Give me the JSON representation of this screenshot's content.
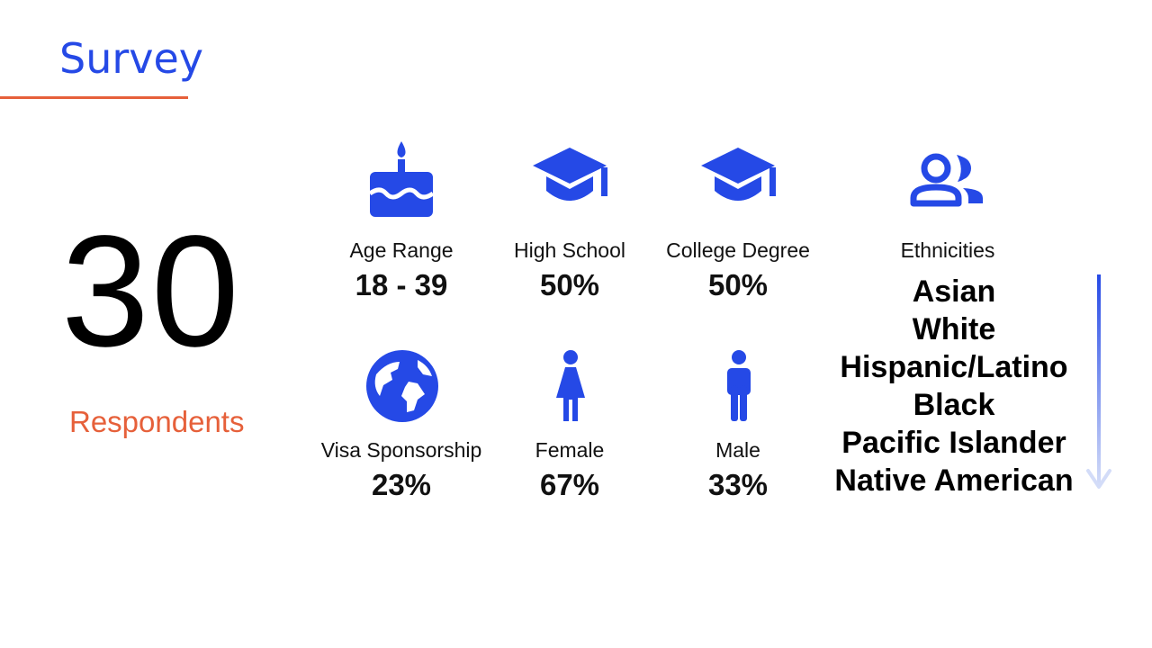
{
  "title": "Survey",
  "respondents": {
    "count": "30",
    "label": "Respondents"
  },
  "stats": {
    "age": {
      "label": "Age Range",
      "value": "18 - 39",
      "icon": "birthday-cake-icon"
    },
    "high_school": {
      "label": "High School",
      "value": "50%",
      "icon": "graduation-cap-icon"
    },
    "college": {
      "label": "College Degree",
      "value": "50%",
      "icon": "graduation-cap-icon"
    },
    "visa": {
      "label": "Visa Sponsorship",
      "value": "23%",
      "icon": "globe-icon"
    },
    "female": {
      "label": "Female",
      "value": "67%",
      "icon": "female-icon"
    },
    "male": {
      "label": "Male",
      "value": "33%",
      "icon": "male-icon"
    }
  },
  "ethnicities": {
    "label": "Ethnicities",
    "icon": "people-icon",
    "items": [
      "Asian",
      "White",
      "Hispanic/Latino",
      "Black",
      "Pacific Islander",
      "Native American"
    ]
  },
  "colors": {
    "accent": "#2549e6",
    "orange": "#e6603a"
  }
}
